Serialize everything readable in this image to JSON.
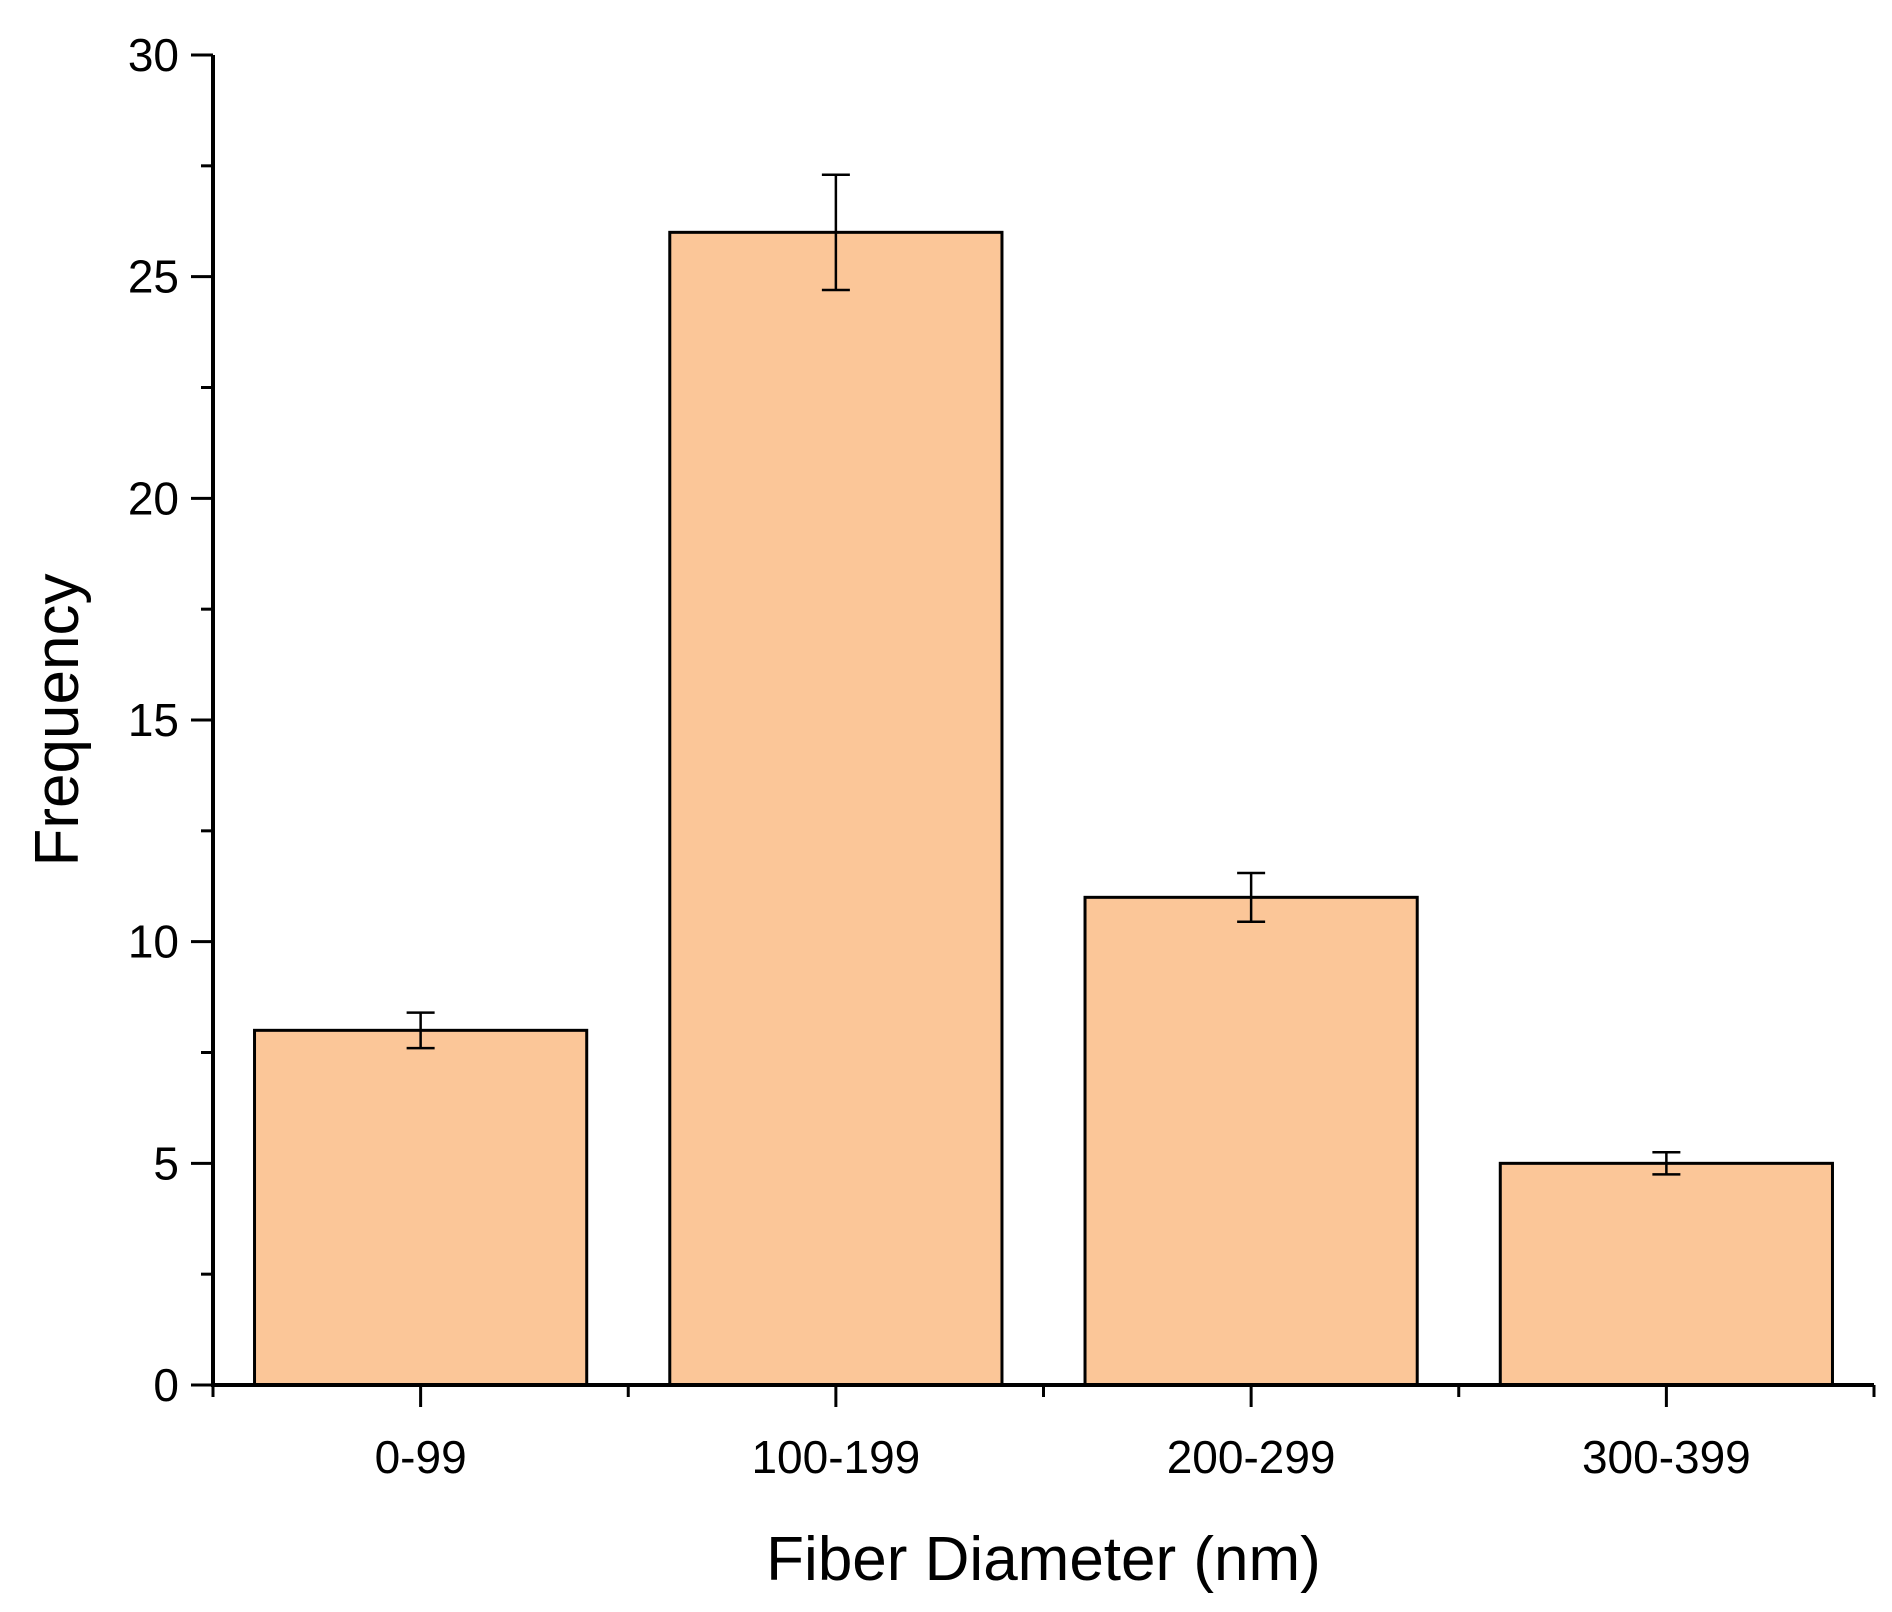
{
  "chart_data": {
    "type": "bar",
    "title": "",
    "xlabel": "Fiber Diameter (nm)",
    "ylabel": "Frequency",
    "categories": [
      "0-99",
      "100-199",
      "200-299",
      "300-399"
    ],
    "values": [
      8,
      26,
      11,
      5
    ],
    "error": [
      0.4,
      1.3,
      0.55,
      0.25
    ],
    "ylim": [
      0,
      30
    ],
    "yticks": [
      "0",
      "5",
      "10",
      "15",
      "20",
      "25",
      "30"
    ],
    "grid": false,
    "legend": "none",
    "bar_color": "#FBC698",
    "bar_edge_color": "#000000"
  }
}
